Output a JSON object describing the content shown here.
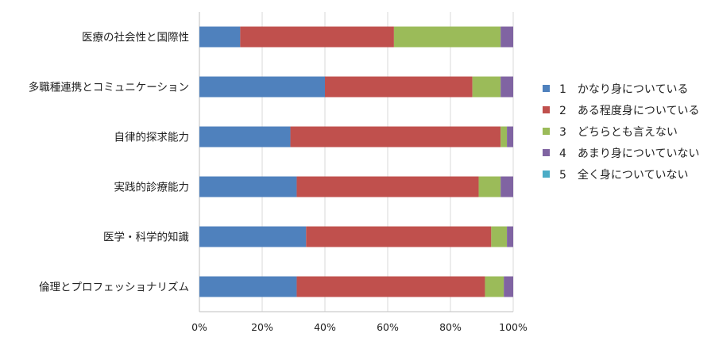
{
  "chart_data": {
    "type": "bar",
    "orientation": "horizontal",
    "stacked": true,
    "percent": true,
    "categories": [
      "医療の社会性と国際性",
      "多職種連携とコミュニケーション",
      "自律的探求能力",
      "実践的診療能力",
      "医学・科学的知識",
      "倫理とプロフェッショナリズム"
    ],
    "series": [
      {
        "name": "1　かなり身についている",
        "color": "#4f81bd",
        "values": [
          13,
          40,
          29,
          31,
          34,
          31
        ]
      },
      {
        "name": "2　ある程度身についている",
        "color": "#c0504d",
        "values": [
          49,
          47,
          67,
          58,
          59,
          60
        ]
      },
      {
        "name": "3　どちらとも言えない",
        "color": "#9bbb59",
        "values": [
          34,
          9,
          2,
          7,
          5,
          6
        ]
      },
      {
        "name": "4　あまり身についていない",
        "color": "#8064a2",
        "values": [
          4,
          4,
          2,
          4,
          2,
          3
        ]
      },
      {
        "name": "5　全く身についていない",
        "color": "#4bacc6",
        "values": [
          0,
          0,
          0,
          0,
          0,
          0
        ]
      }
    ],
    "xlim": [
      0,
      100
    ],
    "xticks": [
      "0%",
      "20%",
      "40%",
      "60%",
      "80%",
      "100%"
    ],
    "grid": true,
    "legend_position": "right"
  }
}
